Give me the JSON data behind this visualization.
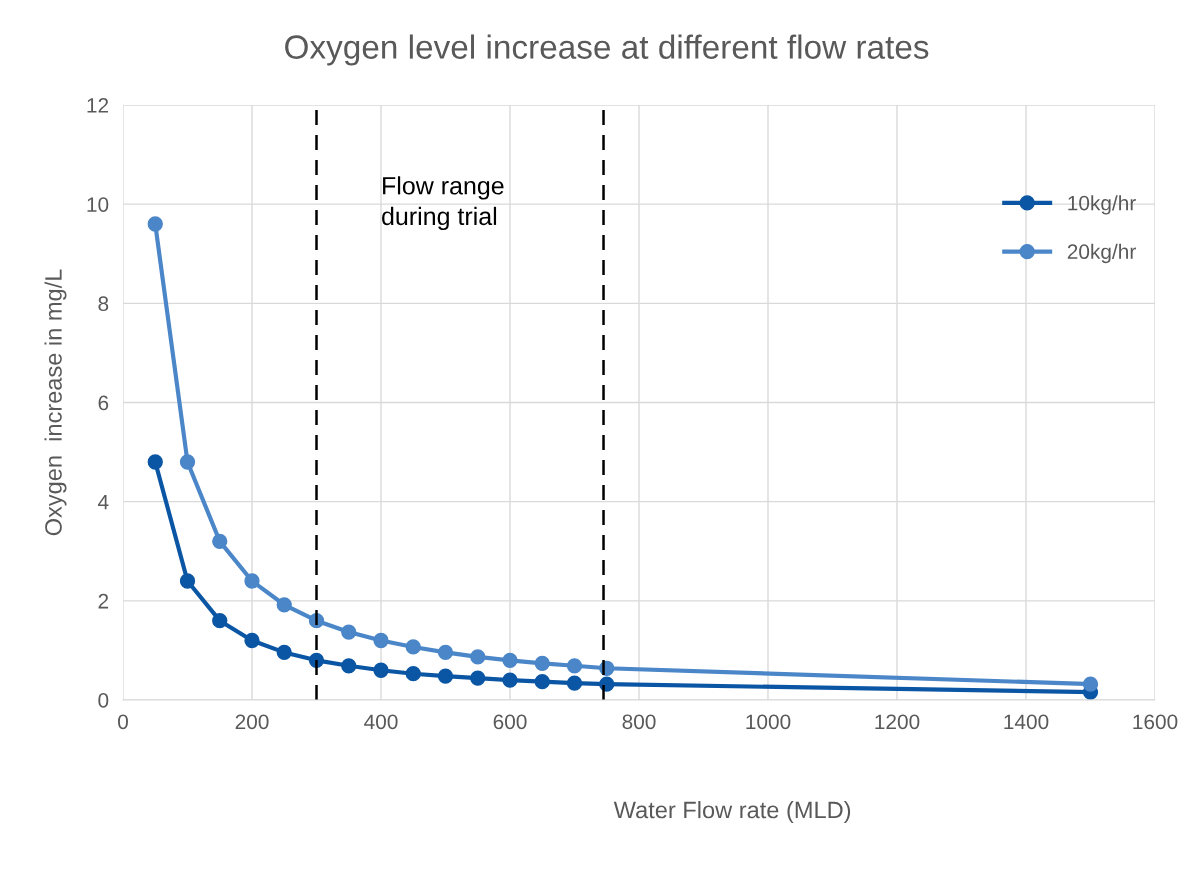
{
  "chart_data": {
    "type": "line",
    "title": "Oxygen level increase at different flow rates",
    "xlabel": "Water Flow rate (MLD)",
    "ylabel": "Oxygen  increase in mg/L",
    "x": [
      50,
      100,
      150,
      200,
      250,
      300,
      350,
      400,
      450,
      500,
      550,
      600,
      650,
      700,
      750,
      1500
    ],
    "series": [
      {
        "name": "10kg/hr",
        "color": "#0b56a4",
        "values": [
          4.8,
          2.4,
          1.6,
          1.2,
          0.96,
          0.8,
          0.69,
          0.6,
          0.53,
          0.48,
          0.44,
          0.4,
          0.37,
          0.34,
          0.32,
          0.16
        ]
      },
      {
        "name": "20kg/hr",
        "color": "#4a86c8",
        "values": [
          9.6,
          4.8,
          3.2,
          2.4,
          1.92,
          1.6,
          1.37,
          1.2,
          1.07,
          0.96,
          0.87,
          0.8,
          0.74,
          0.69,
          0.64,
          0.32
        ]
      }
    ],
    "xlim": [
      0,
      1600
    ],
    "xticks": [
      0,
      200,
      400,
      600,
      800,
      1000,
      1200,
      1400,
      1600
    ],
    "ylim": [
      0,
      12
    ],
    "yticks": [
      0,
      2,
      4,
      6,
      8,
      10,
      12
    ],
    "ref_lines": [
      {
        "axis": "x",
        "value": 300,
        "color": "#000000",
        "line_style": "dashed"
      },
      {
        "axis": "x",
        "value": 745,
        "color": "#000000",
        "line_style": "dashed"
      }
    ],
    "annotations": [
      "Flow range\nduring trial"
    ],
    "grid": true,
    "legend": "top right",
    "marker": "circle",
    "line_style": "solid"
  }
}
